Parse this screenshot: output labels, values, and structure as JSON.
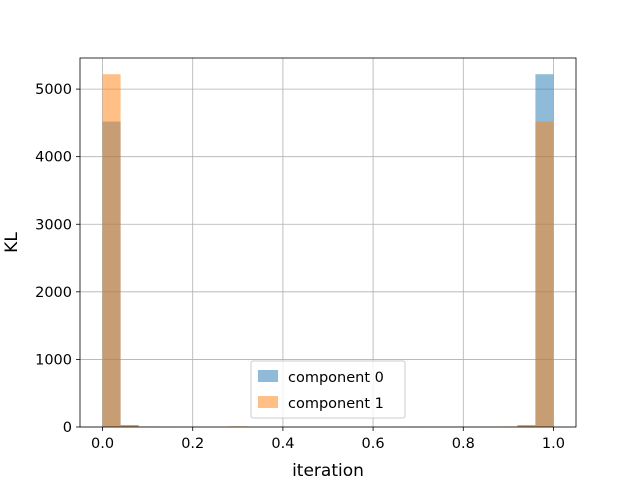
{
  "chart_data": {
    "type": "bar",
    "subtype": "histogram-overlay",
    "xlabel": "iteration",
    "ylabel": "KL",
    "xlim": [
      -0.05,
      1.05
    ],
    "ylim": [
      0,
      5460
    ],
    "xticks": [
      0.0,
      0.2,
      0.4,
      0.6,
      0.8,
      1.0
    ],
    "xtick_labels": [
      "0.0",
      "0.2",
      "0.4",
      "0.6",
      "0.8",
      "1.0"
    ],
    "yticks": [
      0,
      1000,
      2000,
      3000,
      4000,
      5000
    ],
    "ytick_labels": [
      "0",
      "1000",
      "2000",
      "3000",
      "4000",
      "5000"
    ],
    "grid": true,
    "legend_placement": "lower-center",
    "bins": 25,
    "bin_range": [
      0.0,
      1.0
    ],
    "series": [
      {
        "name": "component 0",
        "color": "#1f77b4",
        "alpha": 0.5,
        "values": [
          4520,
          30,
          8,
          4,
          3,
          2,
          1,
          1,
          2,
          1,
          1,
          0,
          1,
          0,
          1,
          1,
          2,
          5,
          2,
          1,
          2,
          4,
          6,
          25,
          5220
        ]
      },
      {
        "name": "component 1",
        "color": "#ff7f0e",
        "alpha": 0.5,
        "values": [
          5220,
          25,
          6,
          4,
          2,
          1,
          2,
          10,
          1,
          1,
          1,
          0,
          1,
          0,
          1,
          1,
          2,
          1,
          2,
          5,
          3,
          4,
          8,
          30,
          4520
        ]
      }
    ]
  }
}
